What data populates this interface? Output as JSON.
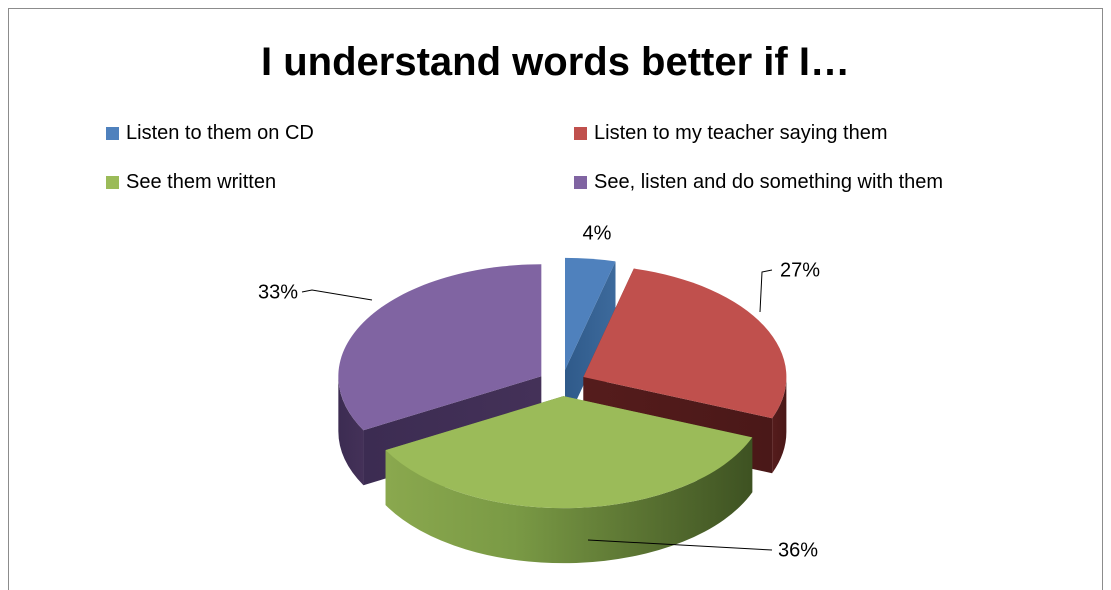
{
  "chart_data": {
    "type": "pie",
    "title": "I understand words better if I…",
    "three_d": true,
    "exploded": true,
    "legend_position": "top",
    "slices": [
      {
        "name": "Listen to them on CD",
        "value": 4,
        "label": "4%",
        "color": "#4f81bd"
      },
      {
        "name": "Listen to my teacher saying them",
        "value": 27,
        "label": "27%",
        "color": "#c0504d"
      },
      {
        "name": "See them written",
        "value": 36,
        "label": "36%",
        "color": "#9bbb59"
      },
      {
        "name": "See, listen and do something with them",
        "value": 33,
        "label": "33%",
        "color": "#8064a2"
      }
    ]
  }
}
